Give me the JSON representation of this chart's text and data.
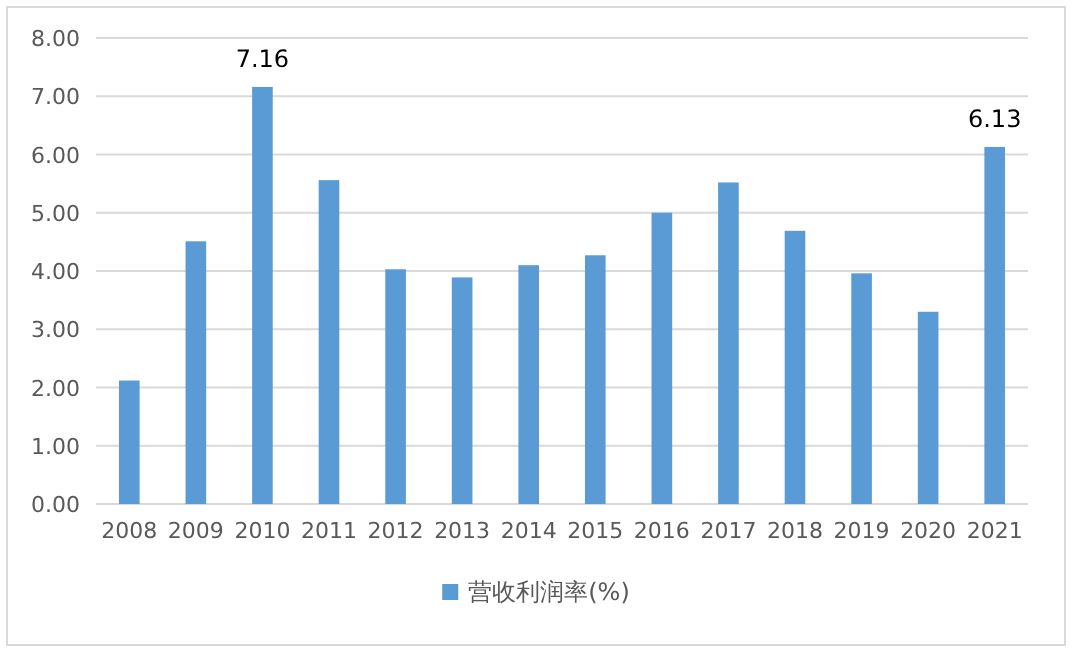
{
  "chart_data": {
    "type": "bar",
    "categories": [
      "2008",
      "2009",
      "2010",
      "2011",
      "2012",
      "2013",
      "2014",
      "2015",
      "2016",
      "2017",
      "2018",
      "2019",
      "2020",
      "2021"
    ],
    "series": [
      {
        "name": "营收利润率(%)",
        "color": "#5b9bd5",
        "values": [
          2.12,
          4.51,
          7.16,
          5.56,
          4.03,
          3.89,
          4.1,
          4.27,
          5.0,
          5.52,
          4.69,
          3.96,
          3.3,
          6.13
        ],
        "value_labels": [
          null,
          null,
          "7.16",
          null,
          null,
          null,
          null,
          null,
          null,
          null,
          null,
          null,
          null,
          "6.13"
        ]
      }
    ],
    "ylim": [
      0,
      8
    ],
    "yticks": [
      {
        "value": 0,
        "label": "0.00"
      },
      {
        "value": 1,
        "label": "1.00"
      },
      {
        "value": 2,
        "label": "2.00"
      },
      {
        "value": 3,
        "label": "3.00"
      },
      {
        "value": 4,
        "label": "4.00"
      },
      {
        "value": 5,
        "label": "5.00"
      },
      {
        "value": 6,
        "label": "6.00"
      },
      {
        "value": 7,
        "label": "7.00"
      },
      {
        "value": 8,
        "label": "8.00"
      }
    ],
    "grid": "y",
    "legend": "bottom"
  }
}
